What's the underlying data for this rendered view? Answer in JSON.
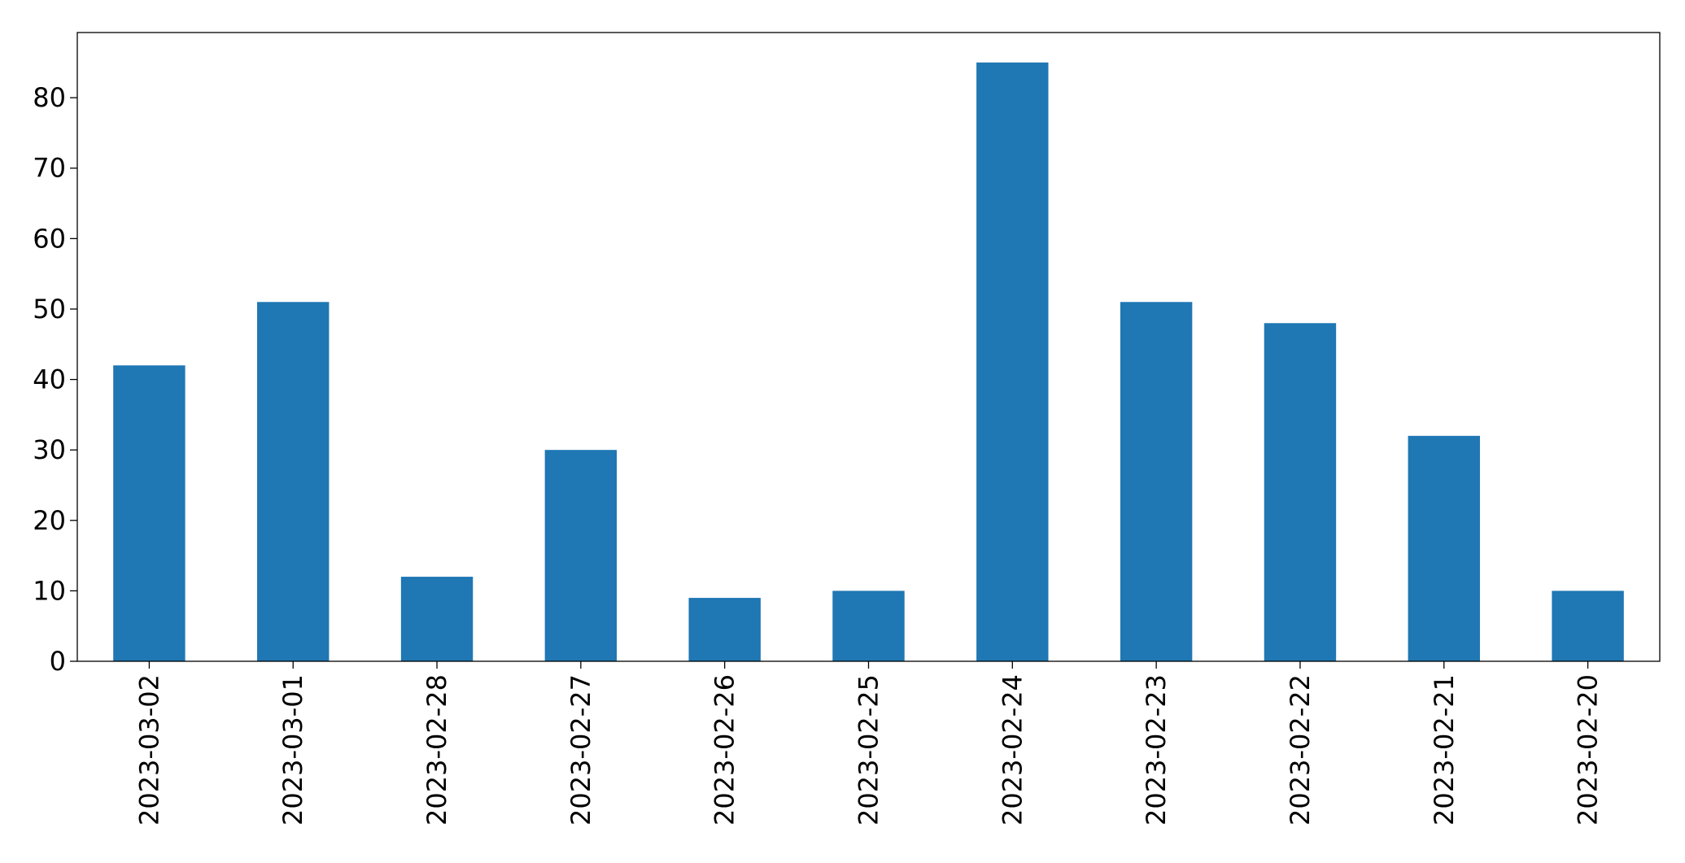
{
  "chart_data": {
    "type": "bar",
    "categories": [
      "2023-03-02",
      "2023-03-01",
      "2023-02-28",
      "2023-02-27",
      "2023-02-26",
      "2023-02-25",
      "2023-02-24",
      "2023-02-23",
      "2023-02-22",
      "2023-02-21",
      "2023-02-20"
    ],
    "values": [
      42,
      51,
      12,
      30,
      9,
      10,
      85,
      51,
      48,
      32,
      10
    ],
    "title": "",
    "xlabel": "",
    "ylabel": "",
    "ylim": [
      0,
      89.25
    ],
    "yticks": [
      0,
      10,
      20,
      30,
      40,
      50,
      60,
      70,
      80
    ],
    "grid": false,
    "bar_color": "#1f77b4",
    "x_tick_rotation": "vertical"
  }
}
